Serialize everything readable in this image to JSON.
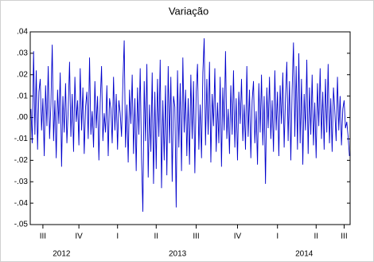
{
  "chart_data": {
    "type": "line",
    "title": "Variação",
    "color": "#0000cc",
    "ylim": [
      -0.05,
      0.04
    ],
    "yticks": [
      {
        "value": 0.04,
        "label": ".04"
      },
      {
        "value": 0.03,
        "label": ".03"
      },
      {
        "value": 0.02,
        "label": ".02"
      },
      {
        "value": 0.01,
        "label": ".01"
      },
      {
        "value": 0,
        "label": ".00"
      },
      {
        "value": -0.01,
        "label": "-.01"
      },
      {
        "value": -0.02,
        "label": "-.02"
      },
      {
        "value": -0.03,
        "label": "-.03"
      },
      {
        "value": -0.04,
        "label": "-.04"
      },
      {
        "value": -0.05,
        "label": "-.05"
      }
    ],
    "quarter_ticks": [
      {
        "value": 9,
        "label": "III"
      },
      {
        "value": 36,
        "label": "IV"
      },
      {
        "value": 65,
        "label": "I"
      },
      {
        "value": 94,
        "label": "II"
      },
      {
        "value": 124,
        "label": "III"
      },
      {
        "value": 155,
        "label": "IV"
      },
      {
        "value": 185,
        "label": "I"
      },
      {
        "value": 214,
        "label": "II"
      },
      {
        "value": 235,
        "label": "III"
      }
    ],
    "year_ticks": [
      {
        "value": 23,
        "label": "2012"
      },
      {
        "value": 110,
        "label": "2013"
      },
      {
        "value": 205,
        "label": "2014"
      }
    ],
    "values": [
      0.004,
      -0.012,
      0.031,
      -0.008,
      0.022,
      -0.015,
      0.012,
      0.018,
      -0.006,
      0.009,
      -0.018,
      0.015,
      -0.004,
      0.024,
      -0.01,
      0.006,
      0.034,
      -0.011,
      0.008,
      -0.019,
      0.013,
      -0.003,
      0.021,
      -0.023,
      0.01,
      -0.007,
      0.016,
      -0.012,
      0.004,
      0.026,
      -0.009,
      0.011,
      -0.016,
      0.019,
      -0.002,
      0.008,
      -0.013,
      0.023,
      -0.006,
      0.014,
      -0.017,
      0.005,
      0.012,
      -0.01,
      0.028,
      -0.008,
      0.003,
      -0.014,
      0.017,
      -0.005,
      0.01,
      -0.02,
      0.007,
      0.024,
      -0.011,
      0.002,
      -0.007,
      0.015,
      -0.018,
      0.009,
      0.004,
      -0.012,
      0.019,
      -0.006,
      0.011,
      -0.015,
      0.008,
      0.002,
      -0.009,
      0.016,
      0.036,
      -0.014,
      0.006,
      -0.021,
      0.013,
      -0.003,
      0.02,
      -0.017,
      0.009,
      -0.025,
      0.014,
      -0.008,
      0.023,
      -0.019,
      -0.044,
      0.017,
      -0.011,
      0.025,
      -0.028,
      0.006,
      -0.016,
      0.021,
      -0.031,
      0.012,
      -0.024,
      0.018,
      -0.009,
      0.027,
      -0.033,
      0.008,
      -0.02,
      0.015,
      -0.027,
      0.024,
      -0.012,
      0.019,
      -0.03,
      0.01,
      0.005,
      -0.042,
      0.022,
      -0.014,
      0.016,
      -0.025,
      0.028,
      -0.007,
      0.013,
      -0.018,
      0.009,
      -0.022,
      0.02,
      -0.01,
      0.017,
      -0.026,
      0.012,
      0.025,
      -0.015,
      0.006,
      -0.019,
      0.021,
      0.037,
      -0.013,
      0.018,
      -0.008,
      0.026,
      -0.021,
      0.011,
      -0.004,
      0.023,
      -0.016,
      0.007,
      -0.012,
      0.019,
      -0.023,
      0.014,
      -0.006,
      0.031,
      -0.01,
      0.004,
      -0.017,
      0.015,
      -0.008,
      0.022,
      -0.014,
      0.009,
      -0.02,
      0.012,
      -0.003,
      0.018,
      -0.011,
      0.006,
      -0.015,
      0.024,
      -0.009,
      0.013,
      -0.019,
      0.008,
      0.017,
      -0.012,
      0.003,
      -0.022,
      0.016,
      -0.007,
      0.02,
      -0.013,
      0.01,
      -0.031,
      0.014,
      -0.005,
      0.019,
      -0.01,
      0.008,
      -0.016,
      0.022,
      -0.006,
      0.012,
      -0.018,
      0.015,
      -0.003,
      0.021,
      -0.014,
      0.009,
      0.026,
      -0.011,
      0.017,
      -0.02,
      0.013,
      0.035,
      -0.009,
      0.024,
      -0.015,
      0.03,
      -0.012,
      0.018,
      -0.022,
      0.011,
      -0.006,
      0.027,
      -0.017,
      0.014,
      -0.008,
      0.02,
      -0.013,
      0.007,
      -0.019,
      0.016,
      -0.004,
      0.023,
      -0.01,
      0.012,
      -0.015,
      0.018,
      -0.007,
      0.025,
      -0.012,
      0.009,
      -0.016,
      0.014,
      0.003,
      -0.011,
      0.019,
      -0.006,
      0.01,
      -0.013,
      0.004,
      0.008,
      -0.005,
      -0.002,
      -0.009,
      -0.018
    ]
  }
}
